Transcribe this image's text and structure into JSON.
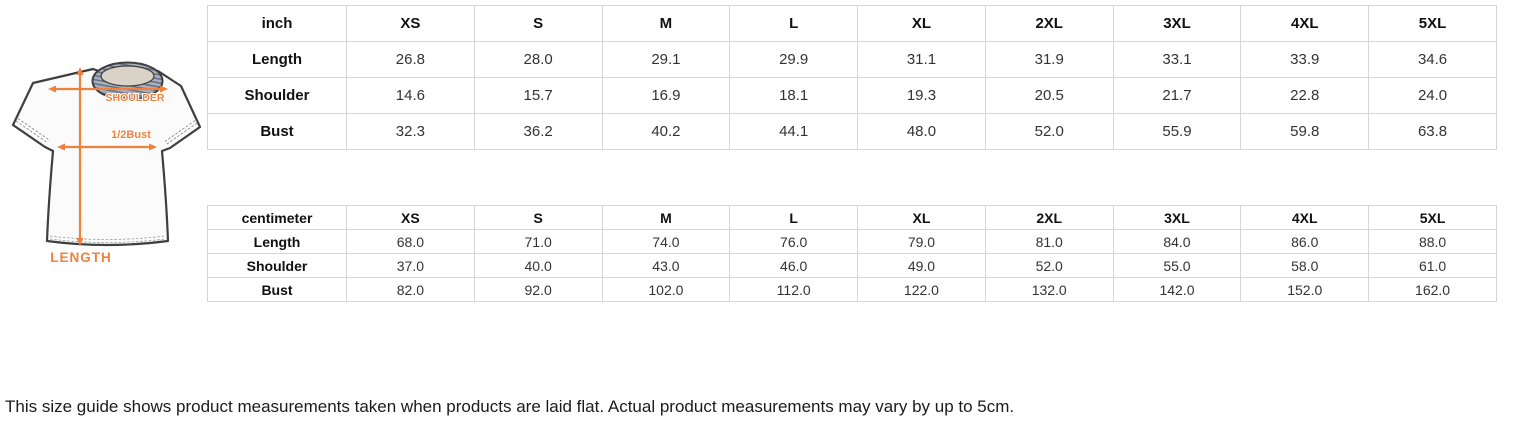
{
  "shirt_diagram": {
    "labels": {
      "shoulder": "SHOULDER",
      "half_bust": "1/2Bust",
      "length": "LENGTH"
    }
  },
  "colors": {
    "accent_orange": "#F0813C",
    "table_border": "#D6D6D6",
    "collar_gray": "#9AA3B2",
    "shirt_outline": "#3F3F3F"
  },
  "tables": [
    {
      "unit_label": "inch",
      "columns": [
        "XS",
        "S",
        "M",
        "L",
        "XL",
        "2XL",
        "3XL",
        "4XL",
        "5XL"
      ],
      "rows": [
        {
          "label": "Length",
          "values": [
            "26.8",
            "28.0",
            "29.1",
            "29.9",
            "31.1",
            "31.9",
            "33.1",
            "33.9",
            "34.6"
          ]
        },
        {
          "label": "Shoulder",
          "values": [
            "14.6",
            "15.7",
            "16.9",
            "18.1",
            "19.3",
            "20.5",
            "21.7",
            "22.8",
            "24.0"
          ]
        },
        {
          "label": "Bust",
          "values": [
            "32.3",
            "36.2",
            "40.2",
            "44.1",
            "48.0",
            "52.0",
            "55.9",
            "59.8",
            "63.8"
          ]
        }
      ]
    },
    {
      "unit_label": "centimeter",
      "columns": [
        "XS",
        "S",
        "M",
        "L",
        "XL",
        "2XL",
        "3XL",
        "4XL",
        "5XL"
      ],
      "rows": [
        {
          "label": "Length",
          "values": [
            "68.0",
            "71.0",
            "74.0",
            "76.0",
            "79.0",
            "81.0",
            "84.0",
            "86.0",
            "88.0"
          ]
        },
        {
          "label": "Shoulder",
          "values": [
            "37.0",
            "40.0",
            "43.0",
            "46.0",
            "49.0",
            "52.0",
            "55.0",
            "58.0",
            "61.0"
          ]
        },
        {
          "label": "Bust",
          "values": [
            "82.0",
            "92.0",
            "102.0",
            "112.0",
            "122.0",
            "132.0",
            "142.0",
            "152.0",
            "162.0"
          ]
        }
      ]
    }
  ],
  "footnote": "This size guide shows product measurements taken when products are laid flat. Actual product measurements may vary by up to 5cm."
}
